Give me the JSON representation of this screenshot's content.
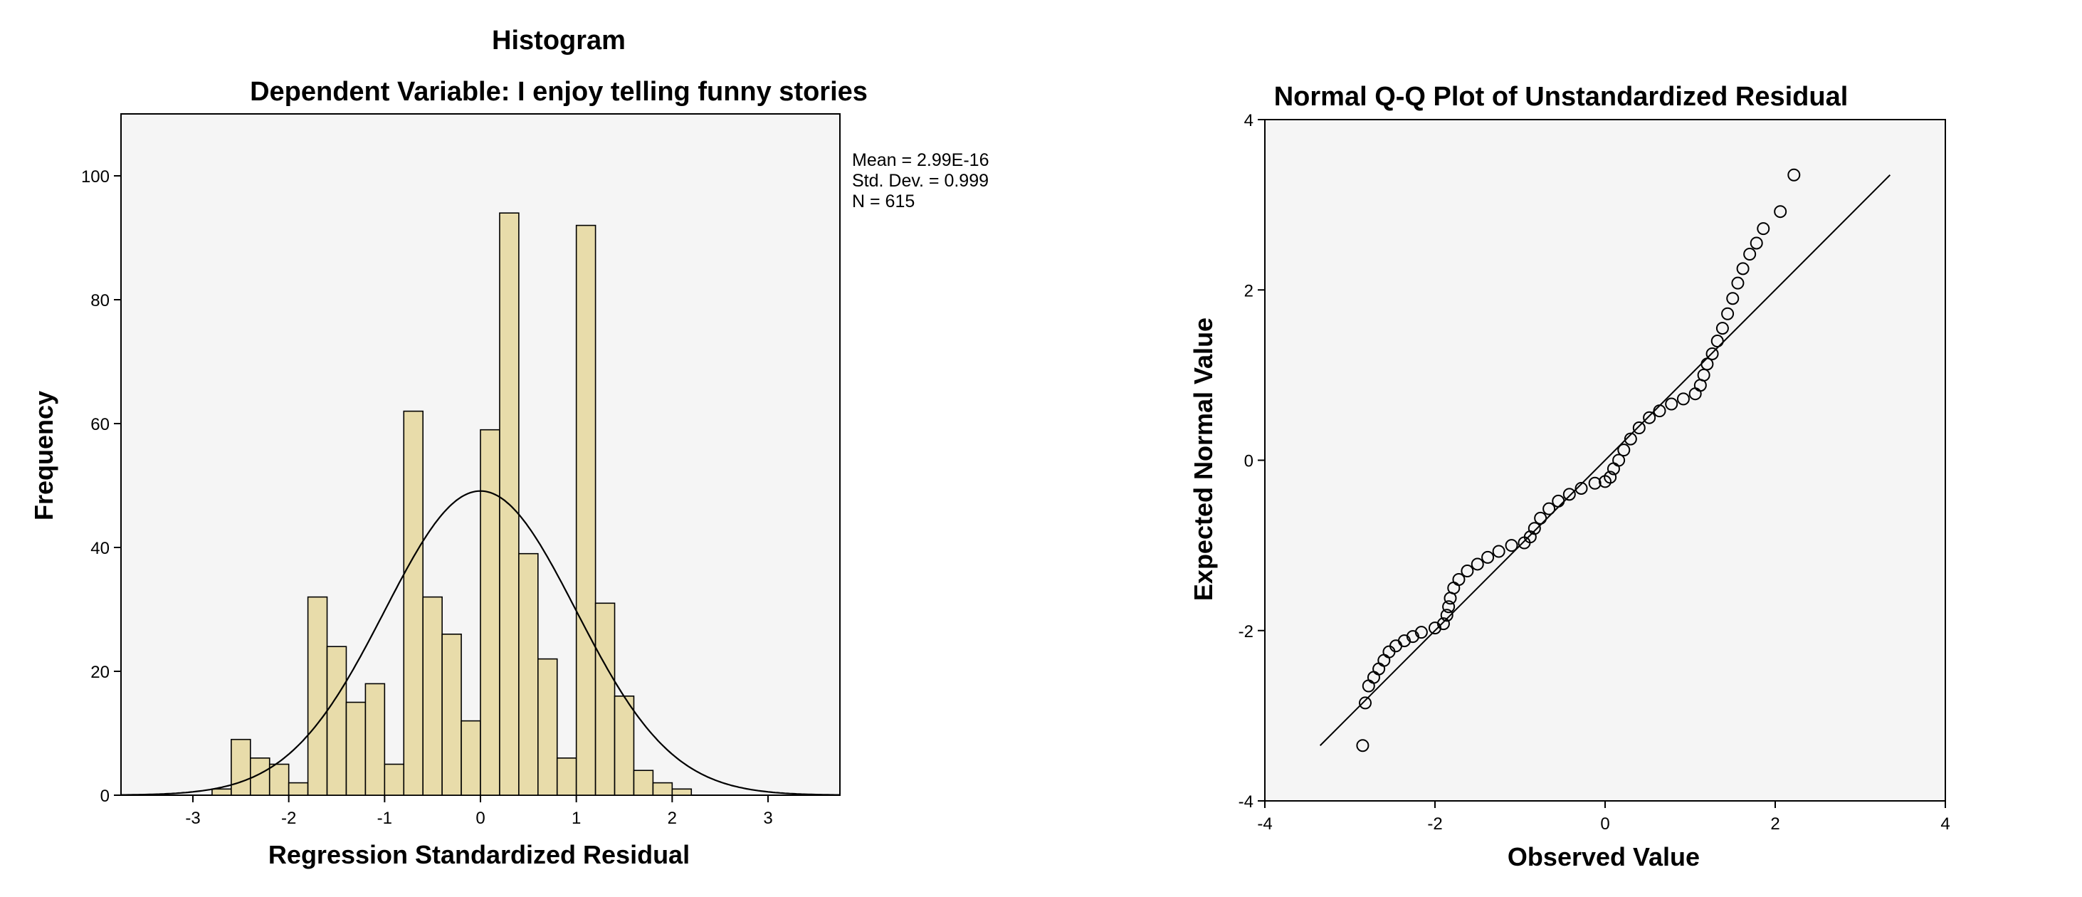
{
  "chart_data": [
    {
      "type": "bar",
      "title": "Histogram",
      "subtitle": "Dependent Variable: I enjoy telling funny stories",
      "xlabel": "Regression Standardized Residual",
      "ylabel": "Frequency",
      "xlim": [
        -3.75,
        3.75
      ],
      "ylim": [
        0,
        110
      ],
      "xticks": [
        -3,
        -2,
        -1,
        0,
        1,
        2,
        3
      ],
      "xtick_labels": [
        "-3",
        "-2",
        "-1",
        "0",
        "1",
        "2",
        "3"
      ],
      "yticks": [
        0,
        20,
        40,
        60,
        80,
        100
      ],
      "ytick_labels": [
        "0",
        "20",
        "40",
        "60",
        "80",
        "100"
      ],
      "bin_width": 0.2,
      "bins": [
        {
          "start": -2.8,
          "value": 1
        },
        {
          "start": -2.6,
          "value": 9
        },
        {
          "start": -2.4,
          "value": 6
        },
        {
          "start": -2.2,
          "value": 5
        },
        {
          "start": -2.0,
          "value": 2
        },
        {
          "start": -1.8,
          "value": 32
        },
        {
          "start": -1.6,
          "value": 24
        },
        {
          "start": -1.4,
          "value": 15
        },
        {
          "start": -1.2,
          "value": 18
        },
        {
          "start": -1.0,
          "value": 5
        },
        {
          "start": -0.8,
          "value": 62
        },
        {
          "start": -0.6,
          "value": 32
        },
        {
          "start": -0.4,
          "value": 26
        },
        {
          "start": -0.2,
          "value": 12
        },
        {
          "start": 0.0,
          "value": 59
        },
        {
          "start": 0.2,
          "value": 94
        },
        {
          "start": 0.4,
          "value": 39
        },
        {
          "start": 0.6,
          "value": 22
        },
        {
          "start": 0.8,
          "value": 6
        },
        {
          "start": 1.0,
          "value": 92
        },
        {
          "start": 1.2,
          "value": 31
        },
        {
          "start": 1.4,
          "value": 16
        },
        {
          "start": 1.6,
          "value": 4
        },
        {
          "start": 1.8,
          "value": 2
        },
        {
          "start": 2.0,
          "value": 1
        }
      ],
      "normal_curve": {
        "mean": 0,
        "sd": 0.999,
        "n": 615
      },
      "stats": {
        "mean": "Mean = 2.99E-16",
        "sd": "Std. Dev. = 0.999",
        "n": "N = 615"
      },
      "bar_color": "#e8dcaa",
      "plot_background": "#f5f5f5",
      "grid": false
    },
    {
      "type": "scatter",
      "title": "Normal Q-Q Plot of Unstandardized Residual",
      "xlabel": "Observed Value",
      "ylabel": "Expected Normal Value",
      "xlim": [
        -4,
        4
      ],
      "ylim": [
        -4,
        4
      ],
      "xticks": [
        -4,
        -2,
        0,
        2,
        4
      ],
      "xtick_labels": [
        "-4",
        "-2",
        "0",
        "2",
        "4"
      ],
      "yticks": [
        -4,
        -2,
        0,
        2,
        4
      ],
      "ytick_labels": [
        "-4",
        "-2",
        "0",
        "2",
        "4"
      ],
      "reference_line": [
        [
          -3.35,
          -3.35
        ],
        [
          3.35,
          3.35
        ]
      ],
      "points": [
        [
          -2.85,
          -3.35
        ],
        [
          -2.82,
          -2.85
        ],
        [
          -2.78,
          -2.65
        ],
        [
          -2.72,
          -2.55
        ],
        [
          -2.66,
          -2.45
        ],
        [
          -2.6,
          -2.35
        ],
        [
          -2.54,
          -2.25
        ],
        [
          -2.46,
          -2.18
        ],
        [
          -2.36,
          -2.12
        ],
        [
          -2.26,
          -2.07
        ],
        [
          -2.16,
          -2.02
        ],
        [
          -2.0,
          -1.97
        ],
        [
          -1.9,
          -1.92
        ],
        [
          -1.86,
          -1.82
        ],
        [
          -1.84,
          -1.72
        ],
        [
          -1.82,
          -1.62
        ],
        [
          -1.78,
          -1.5
        ],
        [
          -1.72,
          -1.4
        ],
        [
          -1.62,
          -1.3
        ],
        [
          -1.5,
          -1.22
        ],
        [
          -1.38,
          -1.14
        ],
        [
          -1.25,
          -1.07
        ],
        [
          -1.1,
          -1.0
        ],
        [
          -0.95,
          -0.97
        ],
        [
          -0.88,
          -0.9
        ],
        [
          -0.83,
          -0.8
        ],
        [
          -0.76,
          -0.68
        ],
        [
          -0.66,
          -0.57
        ],
        [
          -0.55,
          -0.48
        ],
        [
          -0.42,
          -0.4
        ],
        [
          -0.28,
          -0.33
        ],
        [
          -0.12,
          -0.27
        ],
        [
          0.0,
          -0.25
        ],
        [
          0.06,
          -0.2
        ],
        [
          0.1,
          -0.1
        ],
        [
          0.16,
          0.0
        ],
        [
          0.22,
          0.12
        ],
        [
          0.3,
          0.25
        ],
        [
          0.4,
          0.38
        ],
        [
          0.52,
          0.5
        ],
        [
          0.64,
          0.58
        ],
        [
          0.78,
          0.66
        ],
        [
          0.92,
          0.72
        ],
        [
          1.06,
          0.78
        ],
        [
          1.12,
          0.88
        ],
        [
          1.16,
          1.0
        ],
        [
          1.2,
          1.13
        ],
        [
          1.26,
          1.25
        ],
        [
          1.32,
          1.4
        ],
        [
          1.38,
          1.55
        ],
        [
          1.44,
          1.72
        ],
        [
          1.5,
          1.9
        ],
        [
          1.56,
          2.08
        ],
        [
          1.62,
          2.25
        ],
        [
          1.7,
          2.42
        ],
        [
          1.78,
          2.55
        ],
        [
          1.86,
          2.72
        ],
        [
          2.06,
          2.92
        ],
        [
          2.22,
          3.35
        ]
      ]
    }
  ]
}
